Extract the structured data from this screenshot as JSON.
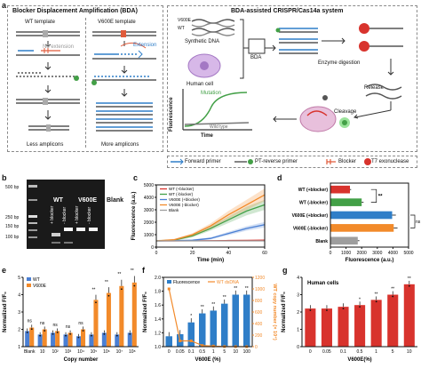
{
  "panel_labels": {
    "a": "a",
    "b": "b",
    "c": "c",
    "d": "d",
    "e": "e",
    "f": "f",
    "g": "g"
  },
  "panel_a": {
    "bda_title": "Blocker Displacement Amplification (BDA)",
    "wt_template": "WT template",
    "v600e_template": "V600E template",
    "no_extension": "No extension",
    "extension": "Extension",
    "less_amplicons": "Less amplicons",
    "more_amplicons": "More amplicons",
    "crispr_title": "BDA-assisted CRISPR/Cas14a system",
    "v600e": "V600E",
    "wt": "WT",
    "synthetic_dna": "Synthetic DNA",
    "human_cell": "Human cell",
    "bda": "BDA",
    "enzyme_digestion": "Enzyme digestion",
    "release": "Release",
    "cleavage": "Cleavage",
    "mutation": "Mutation",
    "wild_type": "Wild type",
    "fluorescence": "Fluorescence",
    "time": "Time",
    "legend": [
      "Forward primer",
      "PT-reverse primer",
      "Blocker",
      "T7 exonuclease"
    ]
  },
  "panel_b": {
    "ladder": [
      "500 bp",
      "250 bp",
      "150 bp",
      "100 bp"
    ],
    "groups": [
      "WT",
      "V600E",
      "Blank"
    ],
    "lanes": [
      "+ blocker",
      "- blocker",
      "+ blocker",
      "- blocker"
    ]
  },
  "panel_c": {
    "ylabel": "Fluorescence (a.u.)",
    "xlabel": "Time (min)",
    "legend": [
      "WT (+blocker)",
      "WT (-blocker)",
      "V600E (+blocker)",
      "V600E (-blocker)",
      "Blank"
    ],
    "yticks": [
      "0",
      "1000",
      "2000",
      "3000",
      "4000",
      "5000"
    ],
    "xticks": [
      "0",
      "20",
      "40",
      "60"
    ]
  },
  "panel_d": {
    "xlabel": "Fluorescence (a.u.)",
    "categories": [
      "WT (+blocker)",
      "WT (-blocker)",
      "V600E (+blocker)",
      "V600E (-blocker)",
      "Blank"
    ],
    "xticks": [
      "0",
      "1000",
      "2000",
      "3000",
      "4000",
      "5000"
    ],
    "sig_stars": "**",
    "sig_ns": "ns"
  },
  "panel_e": {
    "ylabel": "Normalized F/F₀",
    "xlabel": "Copy number",
    "legend": [
      "WT",
      "V600E"
    ],
    "yticks": [
      "1",
      "2",
      "3",
      "4",
      "5"
    ],
    "categories": [
      "Blank",
      "10",
      "10²",
      "10³",
      "10⁴",
      "10⁵",
      "10⁶",
      "10⁷",
      "10⁸"
    ],
    "sig": [
      "ns",
      "ns",
      "ns",
      "ns",
      "ns",
      "**",
      "**",
      "**",
      "**"
    ]
  },
  "panel_f": {
    "ylabel": "Normalized F/F₀",
    "ylabel2": "WT copy number (× 10⁴)",
    "xlabel": "V600E (%)",
    "legend": [
      "Fluorescence",
      "WT dsDNA"
    ],
    "yticks": [
      "1.0",
      "1.2",
      "1.4",
      "1.6",
      "1.8",
      "2.0"
    ],
    "y2ticks": [
      "0",
      "200",
      "400",
      "600",
      "800",
      "1000",
      "1200"
    ],
    "categories": [
      "0",
      "0.05",
      "0.1",
      "0.5",
      "1",
      "5",
      "10",
      "100"
    ],
    "sig": [
      "",
      "",
      "*",
      "**",
      "**",
      "**",
      "**",
      "**"
    ]
  },
  "panel_g": {
    "title": "Human cells",
    "ylabel": "Normalized F/F₀",
    "xlabel": "V600E(%)",
    "yticks": [
      "0",
      "1",
      "2",
      "3",
      "4"
    ],
    "categories": [
      "0",
      "0.05",
      "0.1",
      "0.5",
      "1",
      "5",
      "10"
    ],
    "sig": [
      "",
      "",
      "",
      "*",
      "**",
      "**",
      "**"
    ]
  },
  "colors": {
    "wt": "#4a7fd4",
    "v600e": "#f28a2a",
    "red": "#d8332d",
    "green": "#43a047",
    "gray": "#9e9e9e",
    "blue": "#2f7ec8"
  },
  "chart_data": [
    {
      "type": "line",
      "title": "",
      "xlabel": "Time (min)",
      "ylabel": "Fluorescence (a.u.)",
      "xlim": [
        0,
        60
      ],
      "ylim": [
        0,
        5000
      ],
      "x": [
        0,
        10,
        20,
        30,
        40,
        50,
        60
      ],
      "series": [
        {
          "name": "WT (+blocker)",
          "values": [
            500,
            500,
            510,
            520,
            530,
            540,
            560
          ]
        },
        {
          "name": "WT (-blocker)",
          "values": [
            500,
            560,
            900,
            1500,
            2200,
            2900,
            3400
          ]
        },
        {
          "name": "V600E (+blocker)",
          "values": [
            500,
            520,
            550,
            700,
            1100,
            1500,
            1800
          ]
        },
        {
          "name": "V600E (-blocker)",
          "values": [
            500,
            600,
            1000,
            1700,
            2600,
            3400,
            4200
          ]
        },
        {
          "name": "Blank",
          "values": [
            500,
            500,
            500,
            500,
            500,
            500,
            500
          ]
        }
      ]
    },
    {
      "type": "bar",
      "xlabel": "Fluorescence (a.u.)",
      "categories": [
        "WT (+blocker)",
        "WT (-blocker)",
        "V600E (+blocker)",
        "V600E (-blocker)",
        "Blank"
      ],
      "values": [
        1250,
        2000,
        3950,
        4050,
        1750
      ],
      "xlim": [
        0,
        5000
      ]
    },
    {
      "type": "bar",
      "xlabel": "Copy number",
      "ylabel": "Normalized F/F₀",
      "categories": [
        "Blank",
        "10",
        "10²",
        "10³",
        "10⁴",
        "10⁵",
        "10⁶",
        "10⁷",
        "10⁸"
      ],
      "series": [
        {
          "name": "WT",
          "values": [
            1.9,
            1.7,
            1.8,
            1.7,
            1.6,
            1.7,
            1.8,
            1.7,
            1.8
          ]
        },
        {
          "name": "V600E",
          "values": [
            2.1,
            2.0,
            1.9,
            1.8,
            2.0,
            3.7,
            4.1,
            4.5,
            4.7
          ]
        }
      ],
      "ylim": [
        1,
        5
      ]
    },
    {
      "type": "bar",
      "xlabel": "V600E (%)",
      "ylabel": "Normalized F/F₀",
      "categories": [
        "0",
        "0.05",
        "0.1",
        "0.5",
        "1",
        "5",
        "10",
        "100"
      ],
      "series": [
        {
          "name": "Fluorescence",
          "values": [
            1.15,
            1.18,
            1.35,
            1.48,
            1.52,
            1.62,
            1.75,
            1.75
          ]
        },
        {
          "name": "WT dsDNA",
          "values": [
            1000,
            100,
            100,
            20,
            10,
            2,
            1,
            0
          ]
        }
      ],
      "ylim": [
        1.0,
        2.0
      ],
      "y2lim": [
        0,
        1200
      ]
    },
    {
      "type": "bar",
      "title": "Human cells",
      "xlabel": "V600E(%)",
      "ylabel": "Normalized F/F₀",
      "categories": [
        "0",
        "0.05",
        "0.1",
        "0.5",
        "1",
        "5",
        "10"
      ],
      "values": [
        2.2,
        2.2,
        2.3,
        2.4,
        2.7,
        3.0,
        3.6
      ],
      "ylim": [
        0,
        4
      ]
    }
  ]
}
